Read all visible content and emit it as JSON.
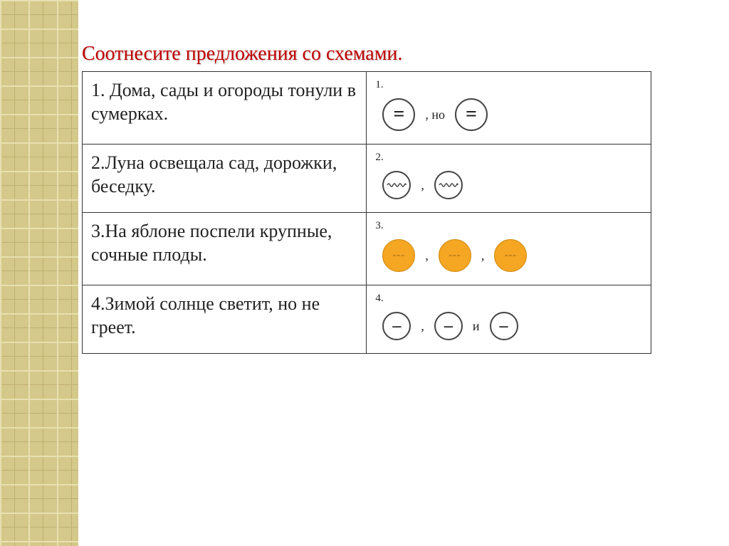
{
  "title": "Соотнесите предложения со схемами.",
  "rows": [
    {
      "num": "1",
      "sentence": "1. Дома, сады и огороды тонули в сумерках.",
      "schema_num": "1.",
      "schema": {
        "type": "two-equals",
        "items": [
          {
            "kind": "circle",
            "variant": "big",
            "glyph": "="
          },
          {
            "kind": "sep",
            "text": ", но"
          },
          {
            "kind": "circle",
            "variant": "big",
            "glyph": "="
          }
        ]
      }
    },
    {
      "num": "2",
      "sentence": "2.Луна освещала сад, дорожки, беседку.",
      "schema_num": "2.",
      "schema": {
        "type": "two-waves",
        "items": [
          {
            "kind": "circle",
            "variant": "med",
            "wave": true
          },
          {
            "kind": "sep",
            "text": ","
          },
          {
            "kind": "circle",
            "variant": "med",
            "wave": true
          }
        ]
      }
    },
    {
      "num": "3",
      "sentence": "3.На яблоне поспели крупные, сочные плоды.",
      "schema_num": "3.",
      "schema": {
        "type": "three-orange",
        "items": [
          {
            "kind": "circle",
            "variant": "orange",
            "glyph": "---"
          },
          {
            "kind": "sep",
            "text": ","
          },
          {
            "kind": "circle",
            "variant": "orange",
            "glyph": "---"
          },
          {
            "kind": "sep",
            "text": ","
          },
          {
            "kind": "circle",
            "variant": "orange",
            "glyph": "---"
          }
        ]
      }
    },
    {
      "num": "4",
      "sentence": "4.Зимой солнце светит, но не греет.",
      "schema_num": "4.",
      "schema": {
        "type": "three-lines",
        "items": [
          {
            "kind": "circle",
            "variant": "med",
            "glyph": "–"
          },
          {
            "kind": "sep",
            "text": ","
          },
          {
            "kind": "circle",
            "variant": "med",
            "glyph": "–"
          },
          {
            "kind": "sep",
            "text": "и"
          },
          {
            "kind": "circle",
            "variant": "med",
            "glyph": "–"
          }
        ]
      }
    }
  ],
  "colors": {
    "title": "#c00000",
    "orange_fill": "#f5a623",
    "orange_border": "#d08a10",
    "pattern_bg": "#d4c88a"
  }
}
